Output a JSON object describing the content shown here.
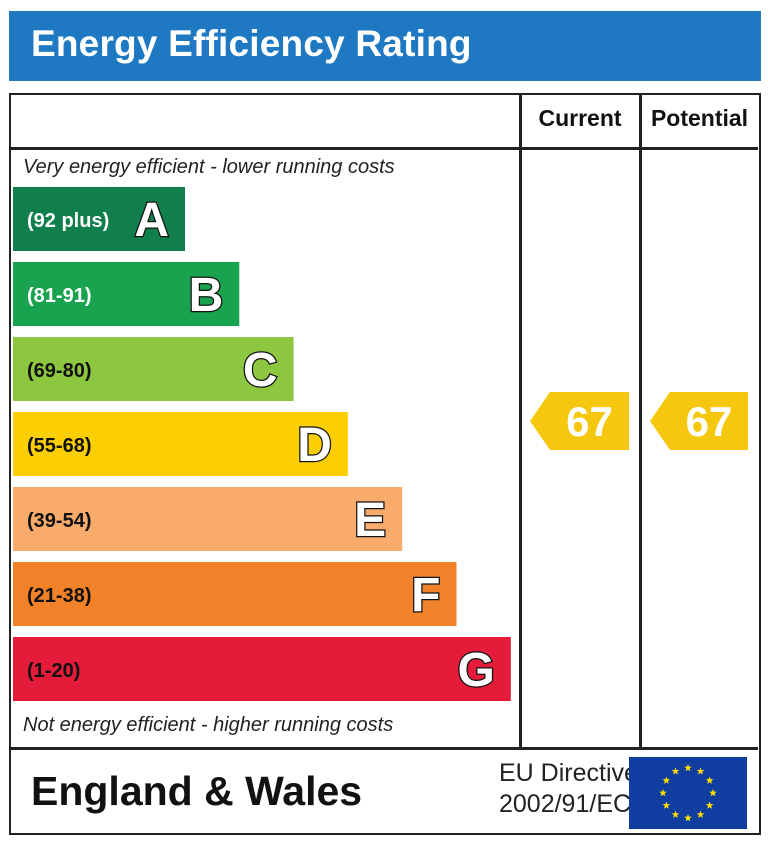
{
  "title": "Energy Efficiency Rating",
  "columns": {
    "current": "Current",
    "potential": "Potential"
  },
  "captions": {
    "top": "Very energy efficient - lower running costs",
    "bottom": "Not energy efficient - higher running costs"
  },
  "footer": {
    "region": "England & Wales",
    "directive_line1": "EU Directive",
    "directive_line2": "2002/91/EC",
    "flag": "eu-flag-icon"
  },
  "chart_data": {
    "type": "bar",
    "bands": [
      {
        "letter": "A",
        "range": "(92 plus)",
        "color": "#117f4c",
        "text_color": "#ffffff"
      },
      {
        "letter": "B",
        "range": "(81-91)",
        "color": "#1aa34f",
        "text_color": "#ffffff"
      },
      {
        "letter": "C",
        "range": "(69-80)",
        "color": "#8dc63f",
        "text_color": "#111111"
      },
      {
        "letter": "D",
        "range": "(55-68)",
        "color": "#fccf05",
        "text_color": "#111111"
      },
      {
        "letter": "E",
        "range": "(39-54)",
        "color": "#f9ab6b",
        "text_color": "#111111"
      },
      {
        "letter": "F",
        "range": "(21-38)",
        "color": "#f2822a",
        "text_color": "#111111"
      },
      {
        "letter": "G",
        "range": "(1-20)",
        "color": "#e41c3a",
        "text_color": "#111111"
      }
    ],
    "current": {
      "value": 67,
      "band": "D"
    },
    "potential": {
      "value": 67,
      "band": "D"
    },
    "arrow_color": "#f5c80f"
  }
}
